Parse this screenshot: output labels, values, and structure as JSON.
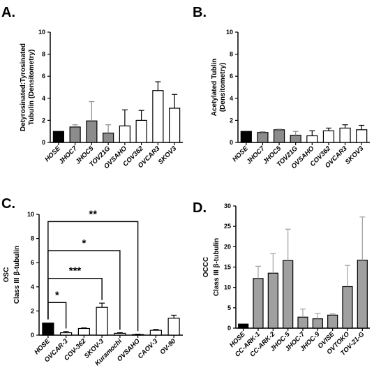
{
  "chart_data": [
    {
      "type": "bar",
      "panel": "A.",
      "ylabel_lines": [
        "Detyrosinated:Tyrosinated",
        "Tubulin (Densitometry)"
      ],
      "ylim": [
        0,
        10
      ],
      "yticks": [
        0,
        2,
        4,
        6,
        8,
        10
      ],
      "categories": [
        "HOSE",
        "JHOC7",
        "JHOC5",
        "TOV21G",
        "OVSAHO",
        "COV362",
        "OVCAR3",
        "SKOV3"
      ],
      "values": [
        1.0,
        1.4,
        1.95,
        0.85,
        1.5,
        2.0,
        4.7,
        3.1
      ],
      "errors": [
        0.0,
        0.2,
        1.75,
        0.75,
        1.45,
        0.9,
        0.8,
        1.25
      ],
      "bar_colors": [
        "#000000",
        "#8c8c8c",
        "#8c8c8c",
        "#8c8c8c",
        "#ffffff",
        "#ffffff",
        "#ffffff",
        "#ffffff"
      ],
      "grid": false,
      "significance": []
    },
    {
      "type": "bar",
      "panel": "B.",
      "ylabel_lines": [
        "Acetylated Tublin",
        "(Densitometry)"
      ],
      "ylim": [
        0,
        10
      ],
      "yticks": [
        0,
        2,
        4,
        6,
        8,
        10
      ],
      "categories": [
        "HOSE",
        "JHOC7",
        "JHOC5",
        "TOV21G",
        "OVSAHO",
        "COV362",
        "OVCAR3",
        "SKOV3"
      ],
      "values": [
        1.0,
        0.9,
        1.15,
        0.65,
        0.6,
        1.05,
        1.3,
        1.15
      ],
      "errors": [
        0.0,
        0.07,
        0.05,
        0.35,
        0.45,
        0.25,
        0.3,
        0.4
      ],
      "bar_colors": [
        "#000000",
        "#8c8c8c",
        "#8c8c8c",
        "#8c8c8c",
        "#ffffff",
        "#ffffff",
        "#ffffff",
        "#ffffff"
      ],
      "grid": false,
      "significance": []
    },
    {
      "type": "bar",
      "panel": "C.",
      "ylabel_lines": [
        "OSC",
        "Class III β-tubulin"
      ],
      "ylim": [
        0,
        10
      ],
      "yticks": [
        0,
        2,
        4,
        6,
        8,
        10
      ],
      "categories": [
        "HOSE",
        "OVCAR-3",
        "COV-362",
        "SKOV-3",
        "Kuramochi",
        "OVSAHO",
        "CAOV-3",
        "OV-90"
      ],
      "values": [
        1.0,
        0.2,
        0.55,
        2.3,
        0.15,
        0.05,
        0.4,
        1.4
      ],
      "errors": [
        0.0,
        0.1,
        0.05,
        0.35,
        0.05,
        0.03,
        0.07,
        0.25
      ],
      "bar_colors": [
        "#000000",
        "#ffffff",
        "#ffffff",
        "#ffffff",
        "#ffffff",
        "#ffffff",
        "#ffffff",
        "#ffffff"
      ],
      "grid": false,
      "significance": [
        {
          "from": 0,
          "to": 1,
          "label": "*",
          "level": 2.7
        },
        {
          "from": 0,
          "to": 3,
          "label": "***",
          "level": 4.7
        },
        {
          "from": 0,
          "to": 4,
          "label": "*",
          "level": 7.0
        },
        {
          "from": 0,
          "to": 5,
          "label": "**",
          "level": 9.4
        }
      ]
    },
    {
      "type": "bar",
      "panel": "D.",
      "ylabel_lines": [
        "OCCC",
        "Class III β-tubulin"
      ],
      "ylim": [
        0,
        30
      ],
      "yticks": [
        0,
        5,
        10,
        15,
        20,
        25,
        30
      ],
      "categories": [
        "HOSE",
        "CC-ARK-1",
        "CC-ARK-2",
        "JHOC-5",
        "JHOC-7",
        "JHOC-9",
        "OVISE",
        "OVTOKO",
        "TOV-21-G"
      ],
      "values": [
        1.0,
        12.2,
        13.5,
        16.6,
        2.7,
        2.3,
        3.2,
        10.2,
        16.7
      ],
      "errors": [
        0.0,
        3.0,
        4.8,
        7.7,
        2.0,
        1.3,
        0.3,
        5.2,
        10.6
      ],
      "bar_colors": [
        "#000000",
        "#a0a0a0",
        "#a0a0a0",
        "#a0a0a0",
        "#a0a0a0",
        "#a0a0a0",
        "#a0a0a0",
        "#a0a0a0",
        "#a0a0a0"
      ],
      "grid": false,
      "significance": []
    }
  ]
}
